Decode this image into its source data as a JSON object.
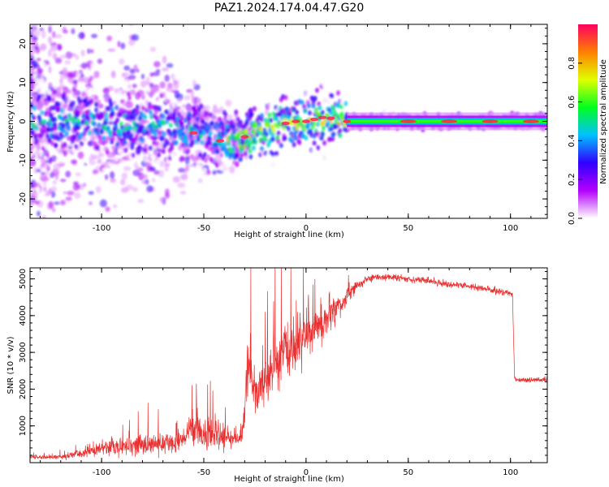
{
  "figure": {
    "title": "PAZ1.2024.174.04.47.G20"
  },
  "chart_data": [
    {
      "type": "heatmap",
      "xlabel": "Height of straight line (km)",
      "ylabel": "Frequency (Hz)",
      "xlim": [
        -135,
        118
      ],
      "ylim": [
        -25,
        25
      ],
      "xticks": [
        -100,
        -50,
        0,
        50,
        100
      ],
      "yticks": [
        -20,
        -10,
        0,
        10,
        20
      ],
      "grid": false,
      "description_points": {
        "ridge_x": [
          -135,
          -115,
          -100,
          -85,
          -70,
          -60,
          -50,
          -40,
          -35,
          -28,
          -20,
          -10,
          0,
          10,
          20,
          40,
          60,
          80,
          100,
          118
        ],
        "ridge_y": [
          0,
          0,
          -1,
          -1,
          -1.5,
          -2.5,
          -3,
          -4.5,
          -5.5,
          -4,
          -2,
          -0.5,
          0,
          0.5,
          0,
          0,
          0,
          0,
          0,
          0
        ]
      },
      "colorbar": {
        "label": "Normalized spectral amplitude",
        "range": [
          0,
          1
        ],
        "ticks": [
          0.0,
          0.2,
          0.4,
          0.6,
          0.8
        ],
        "tick_labels": [
          "0.0",
          "0.2",
          "0.4",
          "0.6",
          "0.8"
        ],
        "colors": [
          "#ffffff",
          "#b400ff",
          "#3000ff",
          "#00c0ff",
          "#00ff20",
          "#e0ff00",
          "#ff8000",
          "#ff0060"
        ]
      }
    },
    {
      "type": "line",
      "xlabel": "Height of straight line (km)",
      "ylabel": "SNR (10 * v/v)",
      "xlim": [
        -135,
        118
      ],
      "ylim": [
        0,
        5300
      ],
      "xticks": [
        -100,
        -50,
        0,
        50,
        100
      ],
      "yticks": [
        1000,
        2000,
        3000,
        4000,
        5000
      ],
      "color": "#e83030",
      "envelope": {
        "x": [
          -135,
          -120,
          -110,
          -100,
          -90,
          -80,
          -70,
          -60,
          -56,
          -50,
          -40,
          -32,
          -30,
          -29,
          -27,
          -25,
          -20,
          -15,
          -10,
          -5,
          0,
          5,
          10,
          15,
          20,
          25,
          30,
          35,
          40,
          50,
          60,
          70,
          80,
          90,
          95,
          100,
          101,
          102,
          104,
          110,
          118
        ],
        "mean": [
          150,
          150,
          250,
          400,
          450,
          500,
          500,
          600,
          1000,
          800,
          700,
          650,
          1200,
          2600,
          2500,
          1800,
          2200,
          2700,
          3000,
          3200,
          3400,
          3700,
          3900,
          4200,
          4500,
          4800,
          5000,
          5050,
          5050,
          5000,
          4950,
          4850,
          4800,
          4700,
          4650,
          4600,
          4600,
          2300,
          2250,
          2250,
          2250
        ],
        "spread": [
          60,
          60,
          150,
          250,
          250,
          300,
          300,
          300,
          450,
          500,
          350,
          300,
          500,
          900,
          800,
          700,
          700,
          800,
          900,
          800,
          800,
          600,
          600,
          400,
          300,
          150,
          120,
          100,
          100,
          100,
          100,
          100,
          100,
          100,
          100,
          100,
          100,
          80,
          80,
          80,
          80
        ]
      }
    }
  ]
}
